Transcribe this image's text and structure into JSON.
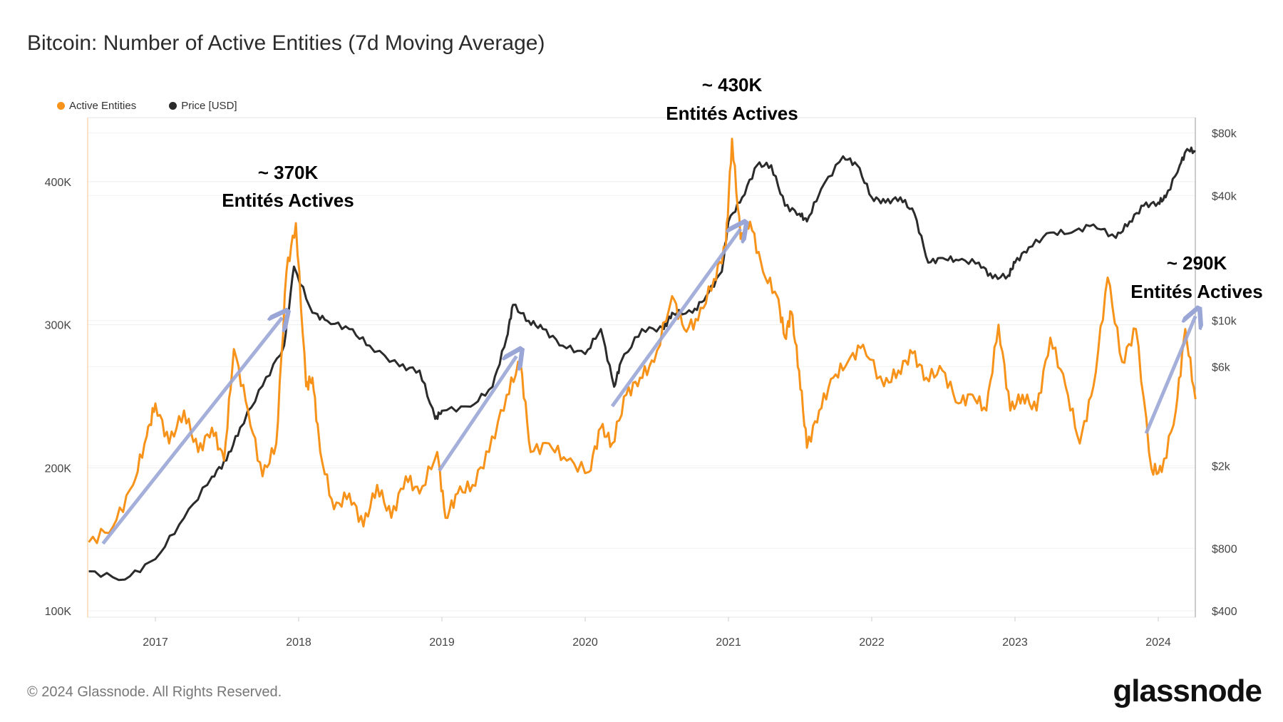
{
  "title": "Bitcoin: Number of Active Entities (7d Moving Average)",
  "footer": "© 2024 Glassnode. All Rights Reserved.",
  "logo": "glassnode",
  "chart_data": {
    "type": "line",
    "title": "Bitcoin: Number of Active Entities (7d Moving Average)",
    "x_range": [
      "2016-07-10",
      "2024-04-05"
    ],
    "x_ticks": [
      "2017",
      "2018",
      "2019",
      "2020",
      "2021",
      "2022",
      "2023",
      "2024"
    ],
    "y_left": {
      "ticks": [
        "100K",
        "200K",
        "300K",
        "400K"
      ],
      "tick_values": [
        100,
        200,
        300,
        400
      ],
      "range": [
        95,
        445
      ],
      "unit": "K"
    },
    "y_right": {
      "scale": "log",
      "ticks": [
        "$400",
        "$800",
        "$2k",
        "$6k",
        "$10k",
        "$40k",
        "$80k"
      ],
      "tick_values": [
        400,
        800,
        2000,
        6000,
        10000,
        40000,
        80000
      ]
    },
    "grid": true,
    "legend_placement": "top-left",
    "legend": [
      {
        "label": "Active Entities",
        "color": "#f7931a"
      },
      {
        "label": "Price [USD]",
        "color": "#2b2b2b"
      }
    ],
    "annotations": [
      {
        "line1": "~ 370K",
        "line2": "Entités Actives"
      },
      {
        "line1": "~ 430K",
        "line2": "Entités Actives"
      },
      {
        "line1": "~ 290K",
        "line2": "Entités Actives"
      }
    ],
    "arrow_color": "#9aa6d6",
    "series": [
      {
        "name": "Active Entities",
        "axis": "left",
        "color": "#f7931a",
        "points": [
          [
            "2016-07-15",
            148
          ],
          [
            "2016-09-15",
            159
          ],
          [
            "2016-11-05",
            188
          ],
          [
            "2016-12-10",
            222
          ],
          [
            "2017-01-01",
            245
          ],
          [
            "2017-02-05",
            217
          ],
          [
            "2017-03-15",
            240
          ],
          [
            "2017-04-20",
            211
          ],
          [
            "2017-05-25",
            228
          ],
          [
            "2017-06-25",
            205
          ],
          [
            "2017-07-20",
            283
          ],
          [
            "2017-08-25",
            240
          ],
          [
            "2017-10-01",
            194
          ],
          [
            "2017-11-05",
            217
          ],
          [
            "2017-12-01",
            337
          ],
          [
            "2017-12-25",
            371
          ],
          [
            "2018-01-20",
            257
          ],
          [
            "2018-02-05",
            263
          ],
          [
            "2018-02-25",
            211
          ],
          [
            "2018-04-01",
            171
          ],
          [
            "2018-05-10",
            182
          ],
          [
            "2018-06-15",
            159
          ],
          [
            "2018-07-20",
            188
          ],
          [
            "2018-08-25",
            165
          ],
          [
            "2018-10-01",
            194
          ],
          [
            "2018-11-05",
            182
          ],
          [
            "2018-12-20",
            211
          ],
          [
            "2019-01-10",
            165
          ],
          [
            "2019-02-10",
            182
          ],
          [
            "2019-03-20",
            188
          ],
          [
            "2019-05-01",
            211
          ],
          [
            "2019-06-15",
            251
          ],
          [
            "2019-07-20",
            274
          ],
          [
            "2019-08-15",
            211
          ],
          [
            "2019-10-01",
            217
          ],
          [
            "2019-11-15",
            205
          ],
          [
            "2020-01-10",
            197
          ],
          [
            "2020-02-10",
            228
          ],
          [
            "2020-03-10",
            217
          ],
          [
            "2020-04-15",
            251
          ],
          [
            "2020-05-20",
            263
          ],
          [
            "2020-06-25",
            274
          ],
          [
            "2020-08-10",
            320
          ],
          [
            "2020-09-10",
            297
          ],
          [
            "2020-10-15",
            303
          ],
          [
            "2020-11-25",
            332
          ],
          [
            "2020-12-25",
            354
          ],
          [
            "2021-01-10",
            430
          ],
          [
            "2021-02-01",
            360
          ],
          [
            "2021-02-25",
            372
          ],
          [
            "2021-03-30",
            337
          ],
          [
            "2021-05-05",
            320
          ],
          [
            "2021-05-25",
            291
          ],
          [
            "2021-06-10",
            309
          ],
          [
            "2021-06-30",
            268
          ],
          [
            "2021-07-20",
            214
          ],
          [
            "2021-08-20",
            240
          ],
          [
            "2021-09-25",
            263
          ],
          [
            "2021-11-01",
            274
          ],
          [
            "2021-12-10",
            286
          ],
          [
            "2022-02-01",
            257
          ],
          [
            "2022-03-10",
            268
          ],
          [
            "2022-04-15",
            280
          ],
          [
            "2022-05-20",
            263
          ],
          [
            "2022-06-30",
            268
          ],
          [
            "2022-08-10",
            245
          ],
          [
            "2022-09-15",
            251
          ],
          [
            "2022-10-20",
            240
          ],
          [
            "2022-11-20",
            300
          ],
          [
            "2022-12-20",
            240
          ],
          [
            "2023-01-20",
            251
          ],
          [
            "2023-02-25",
            240
          ],
          [
            "2023-04-01",
            291
          ],
          [
            "2023-05-10",
            257
          ],
          [
            "2023-06-15",
            217
          ],
          [
            "2023-07-20",
            257
          ],
          [
            "2023-08-25",
            333
          ],
          [
            "2023-10-01",
            274
          ],
          [
            "2023-11-05",
            297
          ],
          [
            "2023-12-15",
            199
          ],
          [
            "2024-01-10",
            197
          ],
          [
            "2024-02-15",
            240
          ],
          [
            "2024-03-10",
            297
          ],
          [
            "2024-04-05",
            248
          ]
        ]
      },
      {
        "name": "Price [USD]",
        "axis": "right",
        "color": "#2b2b2b",
        "points": [
          [
            "2016-07-15",
            620
          ],
          [
            "2016-10-15",
            566
          ],
          [
            "2017-01-01",
            710
          ],
          [
            "2017-03-15",
            1120
          ],
          [
            "2017-05-25",
            1770
          ],
          [
            "2017-07-01",
            2120
          ],
          [
            "2017-08-05",
            3050
          ],
          [
            "2017-10-01",
            4840
          ],
          [
            "2017-11-25",
            7570
          ],
          [
            "2017-12-20",
            18200
          ],
          [
            "2018-02-05",
            10900
          ],
          [
            "2018-03-15",
            9970
          ],
          [
            "2018-05-10",
            9100
          ],
          [
            "2018-07-01",
            7570
          ],
          [
            "2018-09-15",
            6020
          ],
          [
            "2018-11-05",
            5750
          ],
          [
            "2018-12-15",
            3360
          ],
          [
            "2019-01-01",
            3680
          ],
          [
            "2019-03-15",
            3850
          ],
          [
            "2019-05-10",
            4800
          ],
          [
            "2019-06-15",
            8300
          ],
          [
            "2019-07-01",
            11900
          ],
          [
            "2019-08-10",
            9970
          ],
          [
            "2019-09-15",
            9100
          ],
          [
            "2019-11-05",
            7570
          ],
          [
            "2020-01-01",
            6900
          ],
          [
            "2020-02-10",
            9100
          ],
          [
            "2020-03-15",
            4800
          ],
          [
            "2020-04-01",
            6300
          ],
          [
            "2020-05-25",
            9100
          ],
          [
            "2020-07-20",
            9100
          ],
          [
            "2020-08-10",
            10900
          ],
          [
            "2020-10-01",
            10900
          ],
          [
            "2020-11-05",
            13100
          ],
          [
            "2020-12-15",
            17200
          ],
          [
            "2021-01-01",
            30000
          ],
          [
            "2021-02-05",
            39200
          ],
          [
            "2021-03-15",
            56000
          ],
          [
            "2021-04-20",
            56000
          ],
          [
            "2021-05-25",
            35700
          ],
          [
            "2021-07-01",
            32700
          ],
          [
            "2021-07-20",
            30000
          ],
          [
            "2021-08-25",
            43000
          ],
          [
            "2021-10-20",
            61800
          ],
          [
            "2021-11-25",
            56000
          ],
          [
            "2022-01-01",
            39200
          ],
          [
            "2022-02-05",
            37000
          ],
          [
            "2022-03-15",
            39200
          ],
          [
            "2022-04-20",
            32700
          ],
          [
            "2022-05-25",
            19000
          ],
          [
            "2022-07-01",
            20000
          ],
          [
            "2022-08-10",
            19500
          ],
          [
            "2022-10-01",
            19000
          ],
          [
            "2022-11-05",
            16000
          ],
          [
            "2022-12-15",
            16500
          ],
          [
            "2023-01-01",
            19000
          ],
          [
            "2023-02-05",
            22500
          ],
          [
            "2023-04-01",
            26500
          ],
          [
            "2023-05-25",
            26500
          ],
          [
            "2023-07-20",
            29000
          ],
          [
            "2023-09-15",
            25000
          ],
          [
            "2023-10-20",
            30000
          ],
          [
            "2023-11-25",
            35700
          ],
          [
            "2024-01-01",
            37000
          ],
          [
            "2024-01-20",
            39200
          ],
          [
            "2024-02-25",
            56000
          ],
          [
            "2024-03-15",
            67000
          ],
          [
            "2024-04-05",
            65000
          ]
        ]
      }
    ]
  }
}
